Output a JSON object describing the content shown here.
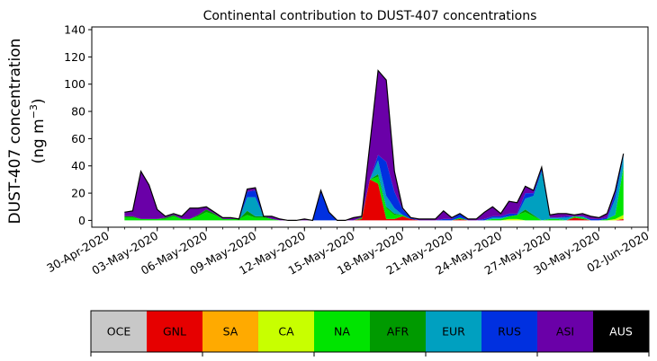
{
  "chart_data": {
    "type": "area",
    "stacked": true,
    "title": "Continental contribution to DUST-407 concentrations",
    "xlabel": "",
    "ylabel_line1": "DUST-407 concentration",
    "ylabel_line2_prefix": "(ng m",
    "ylabel_line2_exponent": "−3",
    "ylabel_line2_suffix": ")",
    "ylim": [
      -5,
      142
    ],
    "xlim": [
      "2020-04-29",
      "2020-06-02"
    ],
    "yticks": [
      0,
      20,
      40,
      60,
      80,
      100,
      120,
      140
    ],
    "ytick_labels": [
      "0",
      "20",
      "40",
      "60",
      "80",
      "100",
      "120",
      "140"
    ],
    "xticks": [
      "2020-04-30",
      "2020-05-03",
      "2020-05-06",
      "2020-05-09",
      "2020-05-12",
      "2020-05-15",
      "2020-05-18",
      "2020-05-21",
      "2020-05-24",
      "2020-05-27",
      "2020-05-30",
      "2020-06-02"
    ],
    "xtick_labels": [
      "30-Apr-2020",
      "03-May-2020",
      "06-May-2020",
      "09-May-2020",
      "12-May-2020",
      "15-May-2020",
      "18-May-2020",
      "21-May-2020",
      "24-May-2020",
      "27-May-2020",
      "30-May-2020",
      "02-Jun-2020"
    ],
    "x": [
      "2020-05-01T00",
      "2020-05-01T12",
      "2020-05-02T00",
      "2020-05-02T12",
      "2020-05-03T00",
      "2020-05-03T12",
      "2020-05-04T00",
      "2020-05-04T12",
      "2020-05-05T00",
      "2020-05-05T12",
      "2020-05-06T00",
      "2020-05-06T12",
      "2020-05-07T00",
      "2020-05-07T12",
      "2020-05-08T00",
      "2020-05-08T12",
      "2020-05-09T00",
      "2020-05-09T12",
      "2020-05-10T00",
      "2020-05-10T12",
      "2020-05-11T00",
      "2020-05-11T12",
      "2020-05-12T00",
      "2020-05-12T12",
      "2020-05-13T00",
      "2020-05-13T12",
      "2020-05-14T00",
      "2020-05-14T12",
      "2020-05-15T00",
      "2020-05-15T12",
      "2020-05-16T00",
      "2020-05-16T12",
      "2020-05-17T00",
      "2020-05-17T12",
      "2020-05-18T00",
      "2020-05-18T12",
      "2020-05-19T00",
      "2020-05-19T12",
      "2020-05-20T00",
      "2020-05-20T12",
      "2020-05-21T00",
      "2020-05-21T12",
      "2020-05-22T00",
      "2020-05-22T12",
      "2020-05-23T00",
      "2020-05-23T12",
      "2020-05-24T00",
      "2020-05-24T12",
      "2020-05-25T00",
      "2020-05-25T12",
      "2020-05-26T00",
      "2020-05-26T12",
      "2020-05-27T00",
      "2020-05-27T12",
      "2020-05-28T00",
      "2020-05-28T12",
      "2020-05-29T00",
      "2020-05-29T12",
      "2020-05-30T00",
      "2020-05-30T12",
      "2020-05-31T00",
      "2020-05-31T12"
    ],
    "series": [
      {
        "name": "OCE",
        "color": "#c8c8c8",
        "values": [
          0,
          0,
          0,
          0,
          0,
          0,
          0,
          0,
          0,
          0,
          0,
          0,
          0,
          0,
          0,
          0,
          0,
          0,
          0,
          0,
          0,
          0,
          0,
          0,
          0,
          0,
          0,
          0,
          0,
          0,
          0,
          0,
          0,
          0,
          0,
          0,
          0,
          0,
          0,
          0,
          0,
          0,
          0,
          0,
          0,
          0,
          0,
          0,
          0,
          0,
          0,
          0,
          0,
          0,
          0,
          0,
          0,
          0,
          0,
          0,
          0,
          0
        ]
      },
      {
        "name": "GNL",
        "color": "#e60000",
        "values": [
          0,
          0,
          0,
          0,
          0,
          0,
          0,
          0,
          0,
          0,
          0,
          0,
          0,
          0,
          0,
          0,
          0,
          0,
          0,
          0,
          0,
          0,
          0,
          0,
          0,
          0,
          0,
          0,
          0,
          1,
          30,
          27,
          1,
          1,
          3,
          1,
          0,
          0,
          0,
          0,
          0,
          1,
          0,
          0,
          0,
          0,
          0,
          0,
          0,
          0,
          0,
          0,
          0,
          0,
          0,
          2,
          1,
          0,
          0,
          0,
          0,
          1
        ]
      },
      {
        "name": "SA",
        "color": "#ffaa00",
        "values": [
          0,
          0,
          0,
          0,
          0,
          0,
          0,
          0,
          0,
          0,
          0,
          0,
          0,
          0,
          0,
          0,
          0,
          0,
          0,
          0,
          0,
          0,
          0,
          0,
          0,
          0,
          0,
          0,
          0,
          0,
          0,
          0,
          0,
          0,
          0,
          0,
          0,
          0,
          0,
          0,
          0,
          0,
          0,
          0,
          0,
          0,
          0,
          0,
          0,
          0,
          0,
          0,
          0,
          0,
          0,
          0,
          0,
          0,
          0,
          0,
          0,
          0
        ]
      },
      {
        "name": "CA",
        "color": "#c8ff00",
        "values": [
          0,
          0,
          0,
          0,
          0,
          0,
          0,
          0,
          0,
          0,
          0,
          0,
          0,
          0,
          0,
          0,
          0,
          0,
          0,
          0,
          0,
          0,
          0,
          0,
          0,
          0,
          0,
          0,
          0,
          0,
          0,
          0,
          0,
          0,
          0,
          0,
          0,
          0,
          0,
          0,
          0,
          0,
          0,
          0,
          0,
          0,
          0,
          1,
          1,
          0,
          0,
          0,
          0,
          0,
          0,
          0,
          0,
          0,
          0,
          0,
          1,
          3
        ]
      },
      {
        "name": "NA",
        "color": "#00e400",
        "values": [
          2,
          2,
          1,
          1,
          1,
          1,
          3,
          1,
          1,
          3,
          6,
          4,
          1,
          1,
          1,
          4,
          2,
          2,
          1,
          0,
          0,
          0,
          0,
          0,
          0,
          0,
          0,
          0,
          0,
          1,
          0,
          5,
          8,
          3,
          1,
          0,
          0,
          0,
          0,
          0,
          0,
          1,
          0,
          0,
          0,
          1,
          1,
          2,
          3,
          6,
          3,
          0,
          1,
          1,
          0,
          1,
          1,
          0,
          0,
          1,
          3,
          35
        ]
      },
      {
        "name": "AFR",
        "color": "#009a00",
        "values": [
          1,
          1,
          0,
          0,
          0,
          1,
          1,
          0,
          0,
          1,
          2,
          1,
          0,
          0,
          0,
          3,
          1,
          1,
          0,
          0,
          0,
          0,
          0,
          0,
          0,
          0,
          0,
          0,
          0,
          0,
          0,
          2,
          1,
          1,
          0,
          0,
          0,
          0,
          0,
          0,
          0,
          0,
          0,
          0,
          0,
          0,
          0,
          0,
          0,
          2,
          1,
          0,
          0,
          0,
          0,
          0,
          0,
          0,
          0,
          0,
          0,
          0
        ]
      },
      {
        "name": "EUR",
        "color": "#00a0c0",
        "values": [
          0,
          0,
          0,
          0,
          0,
          0,
          0,
          0,
          0,
          0,
          0,
          0,
          0,
          0,
          0,
          10,
          14,
          0,
          0,
          0,
          0,
          0,
          0,
          0,
          0,
          0,
          0,
          0,
          0,
          0,
          0,
          10,
          8,
          4,
          0,
          0,
          0,
          0,
          0,
          0,
          0,
          0,
          0,
          0,
          0,
          1,
          1,
          0,
          0,
          8,
          14,
          36,
          1,
          1,
          2,
          0,
          1,
          0,
          0,
          0,
          12,
          8
        ]
      },
      {
        "name": "RUS",
        "color": "#0030e0",
        "values": [
          0,
          0,
          0,
          0,
          0,
          0,
          0,
          0,
          0,
          0,
          0,
          0,
          0,
          0,
          0,
          4,
          5,
          0,
          0,
          0,
          0,
          0,
          0,
          0,
          22,
          6,
          0,
          0,
          0,
          0,
          0,
          4,
          25,
          12,
          4,
          1,
          0,
          0,
          0,
          1,
          1,
          3,
          0,
          0,
          1,
          1,
          1,
          2,
          1,
          4,
          2,
          2,
          0,
          0,
          1,
          0,
          0,
          1,
          1,
          1,
          4,
          2
        ]
      },
      {
        "name": "ASI",
        "color": "#6a00a8",
        "values": [
          3,
          4,
          35,
          25,
          7,
          1,
          1,
          2,
          8,
          5,
          2,
          1,
          1,
          1,
          0,
          2,
          2,
          0,
          2,
          1,
          0,
          0,
          1,
          0,
          0,
          0,
          0,
          0,
          2,
          1,
          26,
          62,
          60,
          15,
          1,
          0,
          1,
          1,
          1,
          6,
          1,
          0,
          1,
          1,
          5,
          7,
          2,
          9,
          8,
          5,
          2,
          1,
          2,
          3,
          2,
          1,
          2,
          2,
          1,
          3,
          2,
          0
        ]
      },
      {
        "name": "AUS",
        "color": "#000000",
        "values": [
          0,
          0,
          0,
          0,
          0,
          0,
          0,
          0,
          0,
          0,
          0,
          0,
          0,
          0,
          0,
          0,
          0,
          0,
          0,
          0,
          0,
          0,
          0,
          0,
          0,
          0,
          0,
          0,
          0,
          0,
          0,
          0,
          0,
          0,
          0,
          0,
          0,
          0,
          0,
          0,
          0,
          0,
          0,
          0,
          0,
          0,
          0,
          0,
          0,
          0,
          0,
          0,
          0,
          0,
          0,
          0,
          0,
          0,
          0,
          0,
          0,
          0
        ]
      }
    ],
    "legend": {
      "placement": "bottom",
      "items": [
        {
          "name": "OCE",
          "color": "#c8c8c8",
          "text_color": "#000000"
        },
        {
          "name": "GNL",
          "color": "#e60000",
          "text_color": "#000000"
        },
        {
          "name": "SA",
          "color": "#ffaa00",
          "text_color": "#000000"
        },
        {
          "name": "CA",
          "color": "#c8ff00",
          "text_color": "#000000"
        },
        {
          "name": "NA",
          "color": "#00e400",
          "text_color": "#000000"
        },
        {
          "name": "AFR",
          "color": "#009a00",
          "text_color": "#000000"
        },
        {
          "name": "EUR",
          "color": "#00a0c0",
          "text_color": "#000000"
        },
        {
          "name": "RUS",
          "color": "#0030e0",
          "text_color": "#000000"
        },
        {
          "name": "ASI",
          "color": "#6a00a8",
          "text_color": "#000000"
        },
        {
          "name": "AUS",
          "color": "#000000",
          "text_color": "#ffffff"
        }
      ]
    },
    "grid": false
  }
}
